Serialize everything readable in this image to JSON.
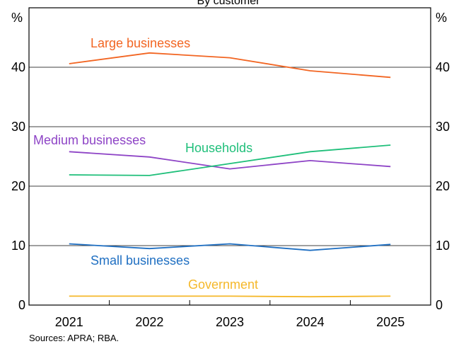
{
  "chart_data": {
    "type": "line",
    "subtitle": "By customer",
    "source": "Sources:   APRA; RBA.",
    "unit_left": "%",
    "unit_right": "%",
    "x": [
      "2021",
      "2022",
      "2023",
      "2024",
      "2025"
    ],
    "ylim": [
      0,
      50
    ],
    "yticks": [
      0,
      10,
      20,
      30,
      40
    ],
    "grid": true,
    "series": [
      {
        "name": "Large businesses",
        "color": "#F26522",
        "values": [
          40.6,
          42.4,
          41.6,
          39.4,
          38.3
        ]
      },
      {
        "name": "Medium businesses",
        "color": "#8E44C6",
        "values": [
          25.8,
          24.9,
          22.9,
          24.3,
          23.3
        ]
      },
      {
        "name": "Households",
        "color": "#1FBF7A",
        "values": [
          21.9,
          21.8,
          23.8,
          25.8,
          26.9
        ]
      },
      {
        "name": "Small businesses",
        "color": "#1F6FC2",
        "values": [
          10.3,
          9.5,
          10.3,
          9.2,
          10.2
        ]
      },
      {
        "name": "Government",
        "color": "#F5B82A",
        "values": [
          1.5,
          1.5,
          1.5,
          1.4,
          1.5
        ]
      }
    ]
  }
}
